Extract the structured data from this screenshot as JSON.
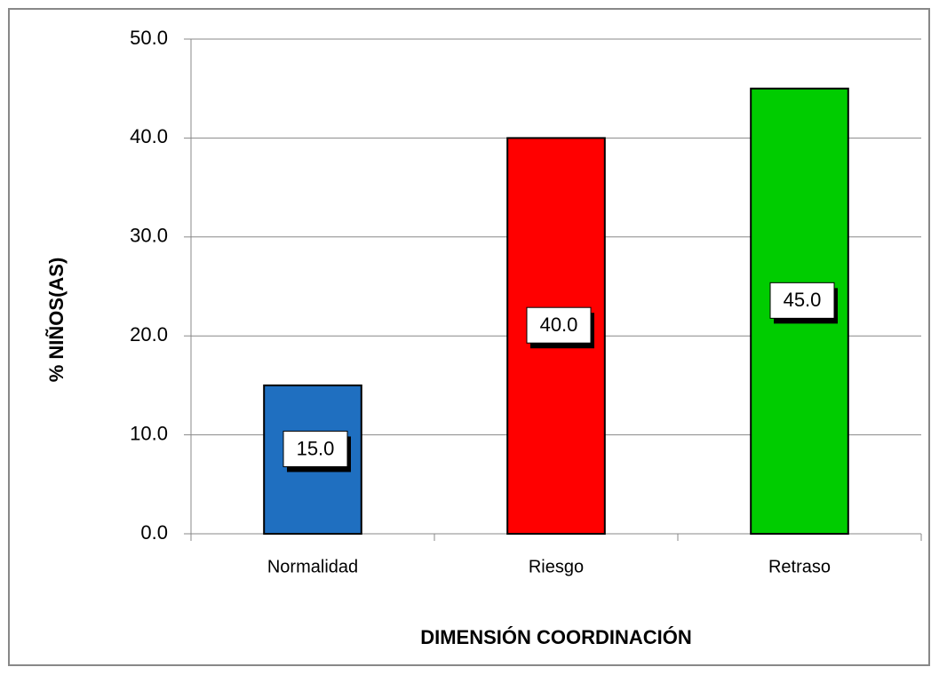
{
  "chart_data": {
    "type": "bar",
    "categories": [
      "Normalidad",
      "Riesgo",
      "Retraso"
    ],
    "values": [
      15.0,
      40.0,
      45.0
    ],
    "value_labels": [
      "15.0",
      "40.0",
      "45.0"
    ],
    "colors": [
      "#1f6fc0",
      "#ff0000",
      "#00cc00"
    ],
    "ylim": [
      0,
      50
    ],
    "yticks": [
      {
        "value": 0,
        "label": "0.0"
      },
      {
        "value": 10,
        "label": "10.0"
      },
      {
        "value": 20,
        "label": "20.0"
      },
      {
        "value": 30,
        "label": "30.0"
      },
      {
        "value": 40,
        "label": "40.0"
      },
      {
        "value": 50,
        "label": "50.0"
      }
    ],
    "grid": true,
    "xlabel": "DIMENSIÓN  COORDINACIÓN",
    "ylabel": "% NIÑOS(AS)"
  }
}
